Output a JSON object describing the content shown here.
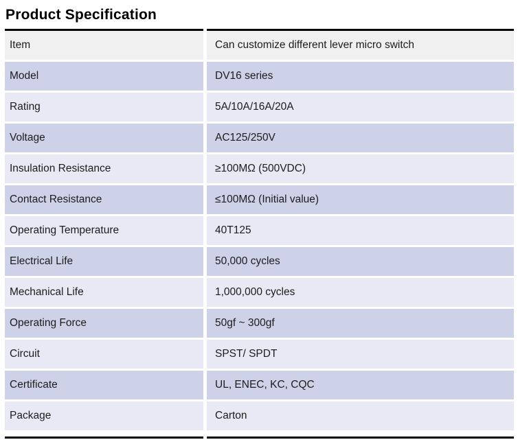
{
  "title": "Product Specification",
  "colors": {
    "header_row_bg": "#f0f0f1",
    "row_dark_bg": "#cdd2e8",
    "row_light_bg": "#e8e9f4",
    "border": "#000000",
    "text": "#1c1c1c"
  },
  "table": {
    "rows": [
      {
        "label": "Item",
        "value": "Can customize different lever micro switch"
      },
      {
        "label": "Model",
        "value": "DV16 series"
      },
      {
        "label": "Rating",
        "value": "5A/10A/16A/20A"
      },
      {
        "label": "Voltage",
        "value": "AC125/250V"
      },
      {
        "label": "Insulation Resistance",
        "value": "≥100MΩ (500VDC)"
      },
      {
        "label": "Contact Resistance",
        "value": "≤100MΩ (Initial value)"
      },
      {
        "label": "Operating Temperature",
        "value": "40T125"
      },
      {
        "label": "Electrical Life",
        "value": "50,000 cycles"
      },
      {
        "label": "Mechanical Life",
        "value": "1,000,000 cycles"
      },
      {
        "label": "Operating Force",
        "value": "50gf ~ 300gf"
      },
      {
        "label": "Circuit",
        "value": "SPST/ SPDT"
      },
      {
        "label": "Certificate",
        "value": "UL, ENEC, KC, CQC"
      },
      {
        "label": "Package",
        "value": "Carton"
      }
    ]
  }
}
